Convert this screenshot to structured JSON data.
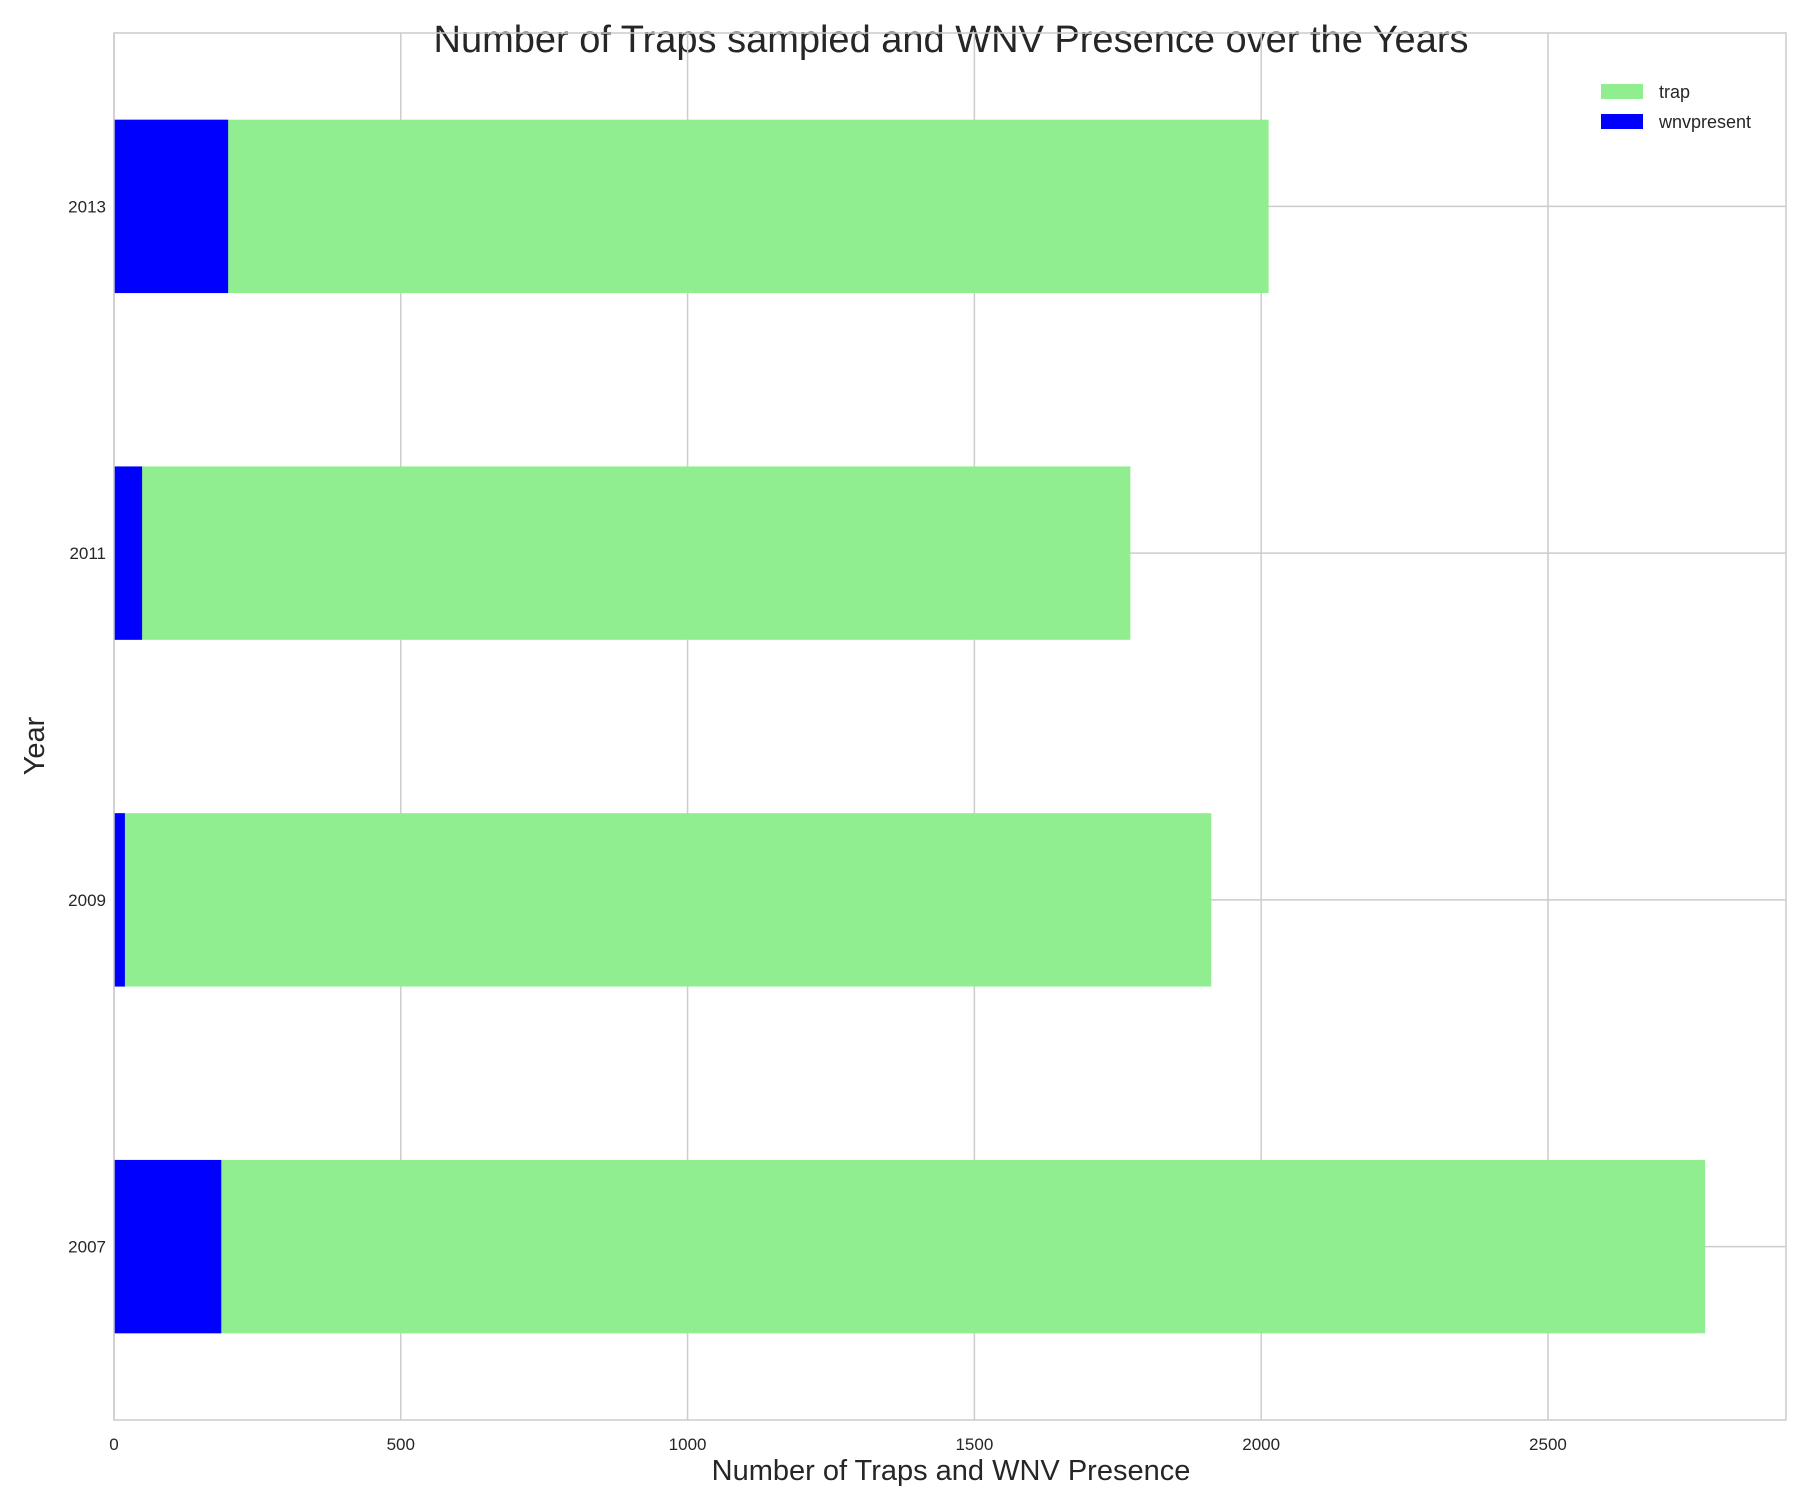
{
  "chart_data": {
    "type": "bar",
    "orientation": "horizontal",
    "stacked": "overlay",
    "title": "Number of Traps sampled and WNV Presence over the Years",
    "xlabel": "Number of Traps and WNV Presence",
    "ylabel": "Year",
    "categories": [
      "2007",
      "2009",
      "2011",
      "2013"
    ],
    "x_ticks": [
      0,
      500,
      1000,
      1500,
      2000,
      2500
    ],
    "xlim": [
      0,
      2915
    ],
    "grid": true,
    "legend_position": "top-right",
    "series": [
      {
        "name": "trap",
        "color": "#90ee90",
        "values": [
          2774,
          1913,
          1772,
          2013
        ]
      },
      {
        "name": "wnvpresent",
        "color": "#0000ff",
        "values": [
          187,
          19,
          49,
          199
        ]
      }
    ]
  }
}
